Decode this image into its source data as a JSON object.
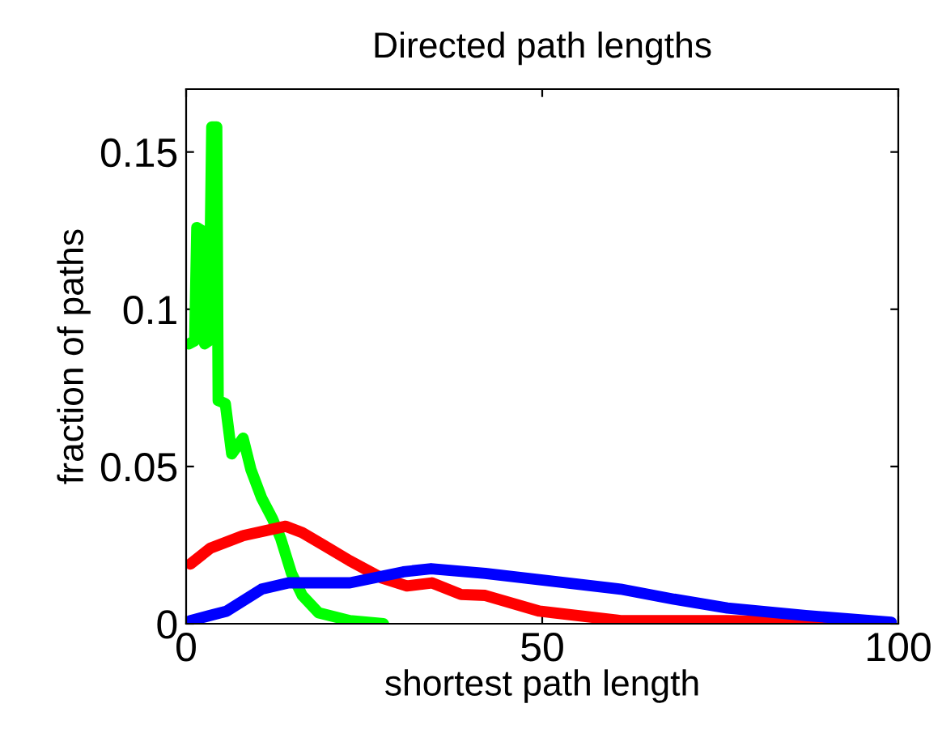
{
  "chart_data": {
    "type": "line",
    "title": "Directed path lengths",
    "xlabel": "shortest path length",
    "ylabel": "fraction of paths",
    "xlim": [
      0,
      100
    ],
    "ylim": [
      0,
      0.17
    ],
    "xticks": [
      0,
      50,
      100
    ],
    "yticks": [
      0,
      0.05,
      0.1,
      0.15
    ],
    "grid": false,
    "marker": "none",
    "line_style": "solid",
    "series": [
      {
        "color": "#00ff00",
        "x": [
          0.4,
          1.2,
          1.5,
          2.2,
          2.6,
          3.2,
          3.6,
          4.3,
          4.5,
          5.5,
          6.4,
          8,
          9.1,
          10.6,
          12.1,
          13.3,
          14.8,
          16.3,
          18.6,
          23,
          27.7
        ],
        "values": [
          0.089,
          0.09,
          0.126,
          0.125,
          0.089,
          0.09,
          0.158,
          0.158,
          0.071,
          0.07,
          0.054,
          0.059,
          0.049,
          0.04,
          0.0335,
          0.027,
          0.016,
          0.009,
          0.0035,
          0.001,
          0.0
        ]
      },
      {
        "color": "#ff0000",
        "x": [
          0.6,
          3.4,
          8,
          14,
          16.3,
          19.3,
          23,
          27.5,
          31,
          34.5,
          38.6,
          42,
          49.6,
          61,
          76,
          99
        ],
        "values": [
          0.019,
          0.024,
          0.028,
          0.031,
          0.029,
          0.025,
          0.02,
          0.0145,
          0.012,
          0.013,
          0.0093,
          0.009,
          0.004,
          0.001,
          0.001,
          0.0
        ]
      },
      {
        "color": "#0000ff",
        "x": [
          0.6,
          5.7,
          10.6,
          14.4,
          23,
          30.5,
          34.4,
          42,
          49.6,
          61,
          68.5,
          76,
          87,
          99
        ],
        "values": [
          0.001,
          0.004,
          0.011,
          0.013,
          0.013,
          0.0165,
          0.0175,
          0.016,
          0.014,
          0.011,
          0.0078,
          0.005,
          0.0026,
          0.0005
        ]
      }
    ]
  }
}
